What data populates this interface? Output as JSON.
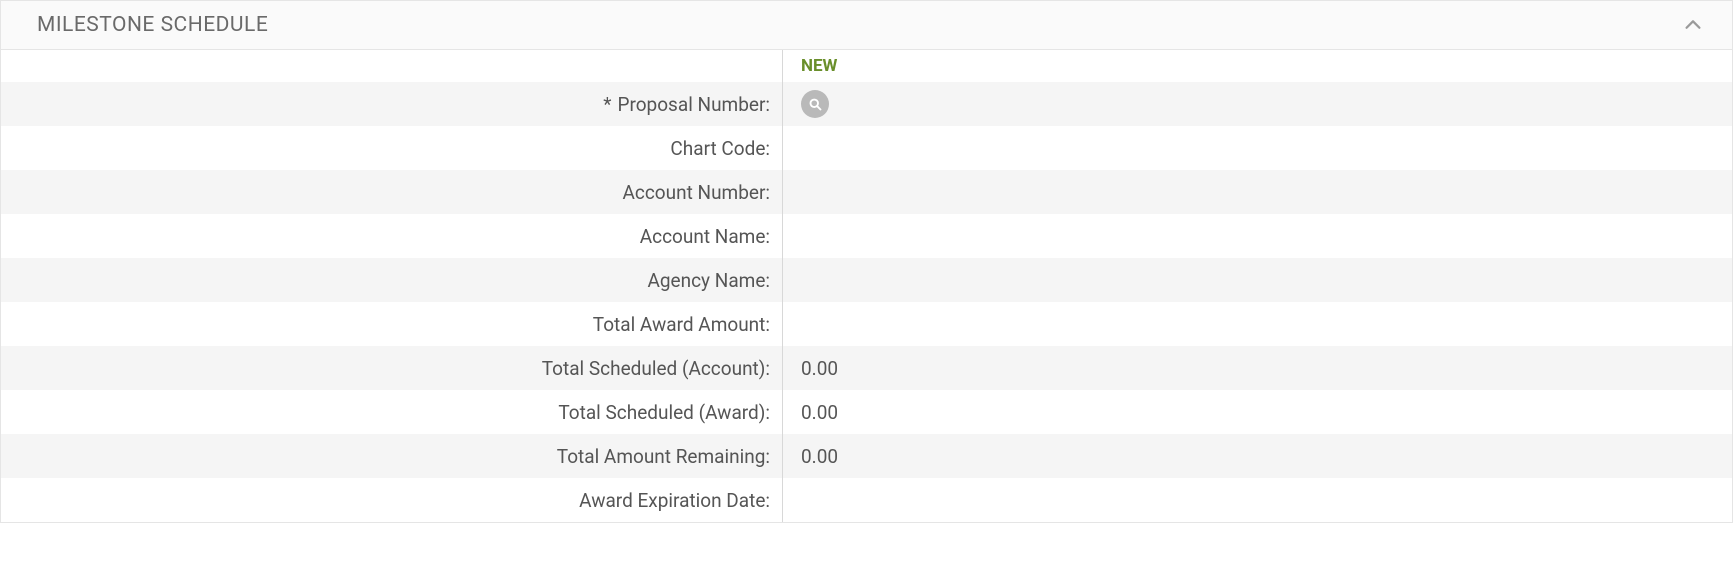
{
  "panel": {
    "title": "MILESTONE SCHEDULE",
    "status": "NEW",
    "collapsed": false
  },
  "colors": {
    "status_new": "#6a8f2b",
    "text": "#555555",
    "title": "#6a6a6a",
    "row_odd_bg": "#f5f5f5",
    "row_even_bg": "#ffffff",
    "border": "#e5e5e5",
    "divider": "#d8d8d8",
    "search_btn_bg": "#b9b9b9"
  },
  "fields": [
    {
      "label": "Proposal Number:",
      "value": "",
      "required": true,
      "has_search": true
    },
    {
      "label": "Chart Code:",
      "value": "",
      "required": false,
      "has_search": false
    },
    {
      "label": "Account Number:",
      "value": "",
      "required": false,
      "has_search": false
    },
    {
      "label": "Account Name:",
      "value": "",
      "required": false,
      "has_search": false
    },
    {
      "label": "Agency Name:",
      "value": "",
      "required": false,
      "has_search": false
    },
    {
      "label": "Total Award Amount:",
      "value": "",
      "required": false,
      "has_search": false
    },
    {
      "label": "Total Scheduled (Account):",
      "value": "0.00",
      "required": false,
      "has_search": false
    },
    {
      "label": "Total Scheduled (Award):",
      "value": "0.00",
      "required": false,
      "has_search": false
    },
    {
      "label": "Total Amount Remaining:",
      "value": "0.00",
      "required": false,
      "has_search": false
    },
    {
      "label": "Award Expiration Date:",
      "value": "",
      "required": false,
      "has_search": false
    }
  ],
  "required_marker": "*"
}
